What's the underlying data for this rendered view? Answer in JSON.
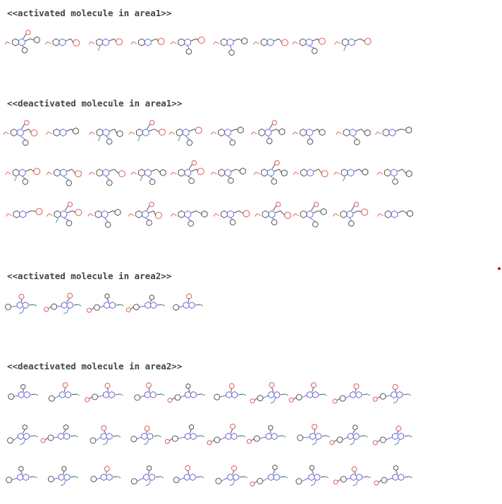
{
  "sections": [
    {
      "heading": "<<activated molecule in area1>>",
      "rows": [
        9
      ],
      "family": "area1"
    },
    {
      "heading": "<<deactivated molecule in area1>>",
      "rows": [
        10,
        10,
        10
      ],
      "family": "area1"
    },
    {
      "heading": "<<activated molecule in area2>>",
      "rows": [
        5
      ],
      "family": "area2"
    },
    {
      "heading": "<<deactivated molecule in area2>>",
      "rows": [
        10,
        10,
        10
      ],
      "family": "area2"
    }
  ],
  "colors": {
    "heading_text": "#444444",
    "bond_carbon": "#555555",
    "bond_nitrogen": "#6d6dd8",
    "bond_oxygen": "#e05a5a",
    "bond_halogen": "#2faa8f",
    "marker": "#cc1111"
  },
  "icons": {
    "molecule": "molecule-structure-icon",
    "marker": "red-dot-marker"
  }
}
